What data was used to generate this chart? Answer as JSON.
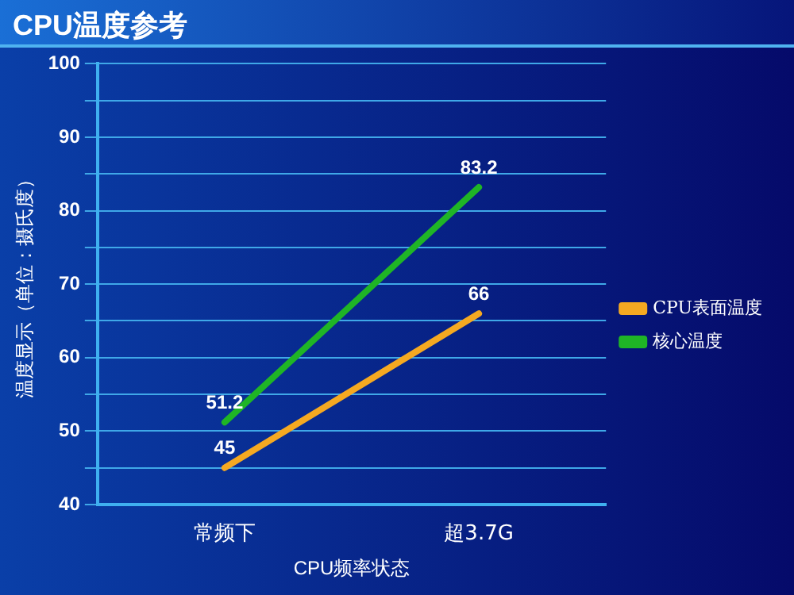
{
  "chart_data": {
    "type": "line",
    "title": "CPU温度参考",
    "xlabel": "CPU频率状态",
    "ylabel": "温度显示（单位：摄氏度）",
    "categories": [
      "常频下",
      "超3.7G"
    ],
    "series": [
      {
        "name": "CPU表面温度",
        "color": "#f5a921",
        "values": [
          45,
          66
        ]
      },
      {
        "name": "核心温度",
        "color": "#1fb526",
        "values": [
          51.2,
          83.2
        ]
      }
    ],
    "ylim": [
      40,
      100
    ],
    "yticks": [
      40,
      {
        "value": 45,
        "label": null
      },
      50,
      {
        "value": 55,
        "label": null
      },
      60,
      {
        "value": 65,
        "label": null
      },
      70,
      {
        "value": 75,
        "label": null
      },
      80,
      {
        "value": 85,
        "label": null
      },
      90,
      {
        "value": 95,
        "label": null
      },
      100
    ],
    "grid": "y",
    "legend": "right",
    "marker": "none",
    "data_labels": true
  }
}
